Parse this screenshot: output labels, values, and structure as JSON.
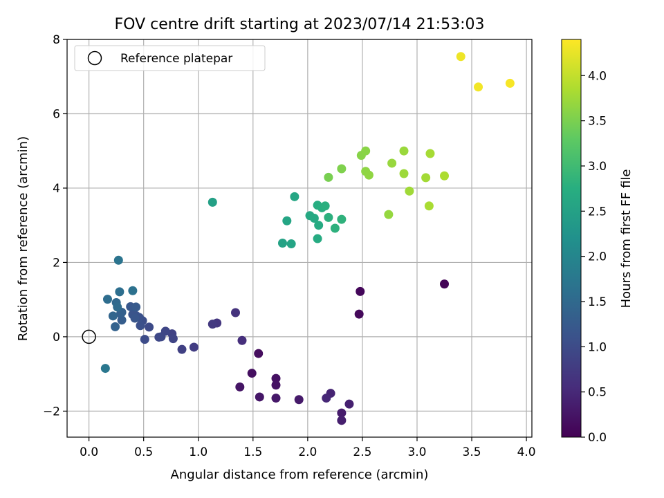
{
  "chart_data": {
    "type": "scatter",
    "title": "FOV centre drift starting at 2023/07/14 21:53:03",
    "xlabel": "Angular distance from reference (arcmin)",
    "ylabel": "Rotation from reference (arcmin)",
    "xlim": [
      -0.2,
      4.05
    ],
    "ylim": [
      -2.7,
      8.0
    ],
    "xticks": [
      0.0,
      0.5,
      1.0,
      1.5,
      2.0,
      2.5,
      3.0,
      3.5,
      4.0
    ],
    "xtick_labels": [
      "0.0",
      "0.5",
      "1.0",
      "1.5",
      "2.0",
      "2.5",
      "3.0",
      "3.5",
      "4.0"
    ],
    "yticks": [
      -2,
      0,
      2,
      4,
      6,
      8
    ],
    "ytick_labels": [
      "−2",
      "0",
      "2",
      "4",
      "6",
      "8"
    ],
    "grid": true,
    "colormap": "viridis",
    "colorbar": {
      "label": "Hours from first FF file",
      "range": [
        0.0,
        4.4
      ],
      "ticks": [
        0.0,
        0.5,
        1.0,
        1.5,
        2.0,
        2.5,
        3.0,
        3.5,
        4.0
      ],
      "tick_labels": [
        "0.0",
        "0.5",
        "1.0",
        "1.5",
        "2.0",
        "2.5",
        "3.0",
        "3.5",
        "4.0"
      ]
    },
    "legend": {
      "placement": "top-left",
      "entries": [
        {
          "label": "Reference platepar",
          "marker": "open-circle"
        }
      ]
    },
    "reference_point": {
      "x": 0.0,
      "y": 0.0
    },
    "points": [
      {
        "x": 3.25,
        "y": 1.42,
        "c": 0.05
      },
      {
        "x": 2.48,
        "y": 1.22,
        "c": 0.08
      },
      {
        "x": 2.47,
        "y": 0.61,
        "c": 0.1
      },
      {
        "x": 1.55,
        "y": -0.45,
        "c": 0.15
      },
      {
        "x": 1.49,
        "y": -0.98,
        "c": 0.18
      },
      {
        "x": 1.71,
        "y": -1.12,
        "c": 0.2
      },
      {
        "x": 1.71,
        "y": -1.3,
        "c": 0.22
      },
      {
        "x": 1.38,
        "y": -1.35,
        "c": 0.25
      },
      {
        "x": 1.56,
        "y": -1.62,
        "c": 0.27
      },
      {
        "x": 1.71,
        "y": -1.65,
        "c": 0.3
      },
      {
        "x": 1.92,
        "y": -1.69,
        "c": 0.32
      },
      {
        "x": 2.31,
        "y": -2.05,
        "c": 0.35
      },
      {
        "x": 2.31,
        "y": -2.25,
        "c": 0.38
      },
      {
        "x": 2.38,
        "y": -1.81,
        "c": 0.4
      },
      {
        "x": 2.21,
        "y": -1.52,
        "c": 0.45
      },
      {
        "x": 2.17,
        "y": -1.65,
        "c": 0.5
      },
      {
        "x": 1.4,
        "y": -0.1,
        "c": 0.6
      },
      {
        "x": 1.34,
        "y": 0.65,
        "c": 0.65
      },
      {
        "x": 1.17,
        "y": 0.37,
        "c": 0.7
      },
      {
        "x": 1.13,
        "y": 0.34,
        "c": 0.75
      },
      {
        "x": 0.96,
        "y": -0.28,
        "c": 0.8
      },
      {
        "x": 0.85,
        "y": -0.34,
        "c": 0.85
      },
      {
        "x": 0.76,
        "y": 0.08,
        "c": 0.88
      },
      {
        "x": 0.77,
        "y": -0.05,
        "c": 0.9
      },
      {
        "x": 0.7,
        "y": 0.15,
        "c": 0.93
      },
      {
        "x": 0.66,
        "y": 0.0,
        "c": 0.95
      },
      {
        "x": 0.64,
        "y": -0.01,
        "c": 0.97
      },
      {
        "x": 0.55,
        "y": 0.26,
        "c": 1.0
      },
      {
        "x": 0.51,
        "y": -0.07,
        "c": 1.02
      },
      {
        "x": 0.49,
        "y": 0.43,
        "c": 1.05
      },
      {
        "x": 0.47,
        "y": 0.3,
        "c": 1.08
      },
      {
        "x": 0.46,
        "y": 0.52,
        "c": 1.1
      },
      {
        "x": 0.43,
        "y": 0.57,
        "c": 1.12
      },
      {
        "x": 0.4,
        "y": 0.6,
        "c": 1.15
      },
      {
        "x": 0.42,
        "y": 0.5,
        "c": 1.18
      },
      {
        "x": 0.38,
        "y": 0.81,
        "c": 1.2
      },
      {
        "x": 0.43,
        "y": 0.8,
        "c": 1.25
      },
      {
        "x": 0.3,
        "y": 0.45,
        "c": 1.3
      },
      {
        "x": 0.29,
        "y": 0.62,
        "c": 1.33
      },
      {
        "x": 0.3,
        "y": 0.66,
        "c": 1.35
      },
      {
        "x": 0.24,
        "y": 0.27,
        "c": 1.4
      },
      {
        "x": 0.22,
        "y": 0.56,
        "c": 1.45
      },
      {
        "x": 0.25,
        "y": 0.92,
        "c": 1.5
      },
      {
        "x": 0.26,
        "y": 0.8,
        "c": 1.55
      },
      {
        "x": 0.17,
        "y": 1.01,
        "c": 1.58
      },
      {
        "x": 0.28,
        "y": 1.21,
        "c": 1.6
      },
      {
        "x": 0.4,
        "y": 1.24,
        "c": 1.65
      },
      {
        "x": 0.27,
        "y": 2.06,
        "c": 1.7
      },
      {
        "x": 0.15,
        "y": -0.85,
        "c": 1.75
      },
      {
        "x": 1.13,
        "y": 3.62,
        "c": 2.5
      },
      {
        "x": 1.77,
        "y": 2.52,
        "c": 2.55
      },
      {
        "x": 1.85,
        "y": 2.5,
        "c": 2.58
      },
      {
        "x": 1.81,
        "y": 3.12,
        "c": 2.6
      },
      {
        "x": 1.88,
        "y": 3.77,
        "c": 2.62
      },
      {
        "x": 2.02,
        "y": 3.26,
        "c": 2.65
      },
      {
        "x": 2.06,
        "y": 3.19,
        "c": 2.67
      },
      {
        "x": 2.1,
        "y": 3.0,
        "c": 2.7
      },
      {
        "x": 2.09,
        "y": 2.64,
        "c": 2.72
      },
      {
        "x": 2.09,
        "y": 3.54,
        "c": 2.75
      },
      {
        "x": 2.13,
        "y": 3.47,
        "c": 2.77
      },
      {
        "x": 2.16,
        "y": 3.52,
        "c": 2.79
      },
      {
        "x": 2.19,
        "y": 3.21,
        "c": 2.8
      },
      {
        "x": 2.25,
        "y": 2.92,
        "c": 2.82
      },
      {
        "x": 2.31,
        "y": 3.16,
        "c": 2.84
      },
      {
        "x": 2.19,
        "y": 4.29,
        "c": 3.5
      },
      {
        "x": 2.31,
        "y": 4.52,
        "c": 3.55
      },
      {
        "x": 2.49,
        "y": 4.88,
        "c": 3.6
      },
      {
        "x": 2.53,
        "y": 5.0,
        "c": 3.62
      },
      {
        "x": 2.53,
        "y": 4.45,
        "c": 3.65
      },
      {
        "x": 2.56,
        "y": 4.35,
        "c": 3.67
      },
      {
        "x": 2.74,
        "y": 3.29,
        "c": 3.7
      },
      {
        "x": 2.77,
        "y": 4.67,
        "c": 3.72
      },
      {
        "x": 2.88,
        "y": 5.0,
        "c": 3.74
      },
      {
        "x": 2.88,
        "y": 4.39,
        "c": 3.76
      },
      {
        "x": 2.93,
        "y": 3.92,
        "c": 3.78
      },
      {
        "x": 3.08,
        "y": 4.28,
        "c": 3.8
      },
      {
        "x": 3.12,
        "y": 4.93,
        "c": 3.82
      },
      {
        "x": 3.11,
        "y": 3.52,
        "c": 3.84
      },
      {
        "x": 3.25,
        "y": 4.33,
        "c": 3.86
      },
      {
        "x": 3.4,
        "y": 7.54,
        "c": 4.3
      },
      {
        "x": 3.56,
        "y": 6.72,
        "c": 4.33
      },
      {
        "x": 3.85,
        "y": 6.82,
        "c": 4.36
      }
    ]
  }
}
